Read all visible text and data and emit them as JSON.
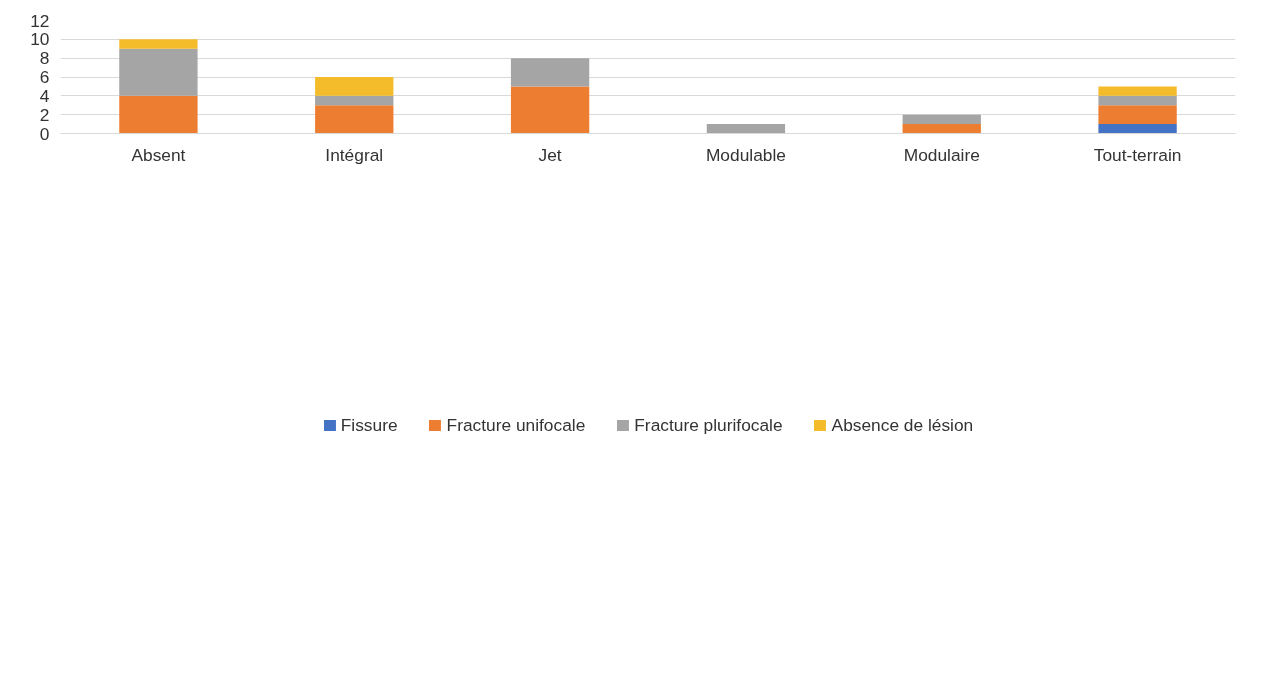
{
  "chart_data": {
    "type": "bar",
    "stacked": true,
    "categories": [
      "Absent",
      "Intégral",
      "Jet",
      "Modulable",
      "Modulaire",
      "Tout-terrain"
    ],
    "series": [
      {
        "name": "Fissure",
        "color": "#4472c4",
        "values": [
          0,
          0,
          0,
          0,
          0,
          1
        ]
      },
      {
        "name": "Fracture unifocale",
        "color": "#ed7d31",
        "values": [
          4,
          3,
          5,
          0,
          1,
          2
        ]
      },
      {
        "name": "Fracture plurifocale",
        "color": "#a5a5a5",
        "values": [
          5,
          1,
          3,
          1,
          1,
          1
        ]
      },
      {
        "name": "Absence de lésion",
        "color": "#f4bc2a",
        "values": [
          1,
          2,
          0,
          0,
          0,
          1
        ]
      }
    ],
    "ylim": [
      0,
      12
    ],
    "yticks": [
      0,
      2,
      4,
      6,
      8,
      10,
      12
    ],
    "grid": "y",
    "legend": "bottom"
  }
}
